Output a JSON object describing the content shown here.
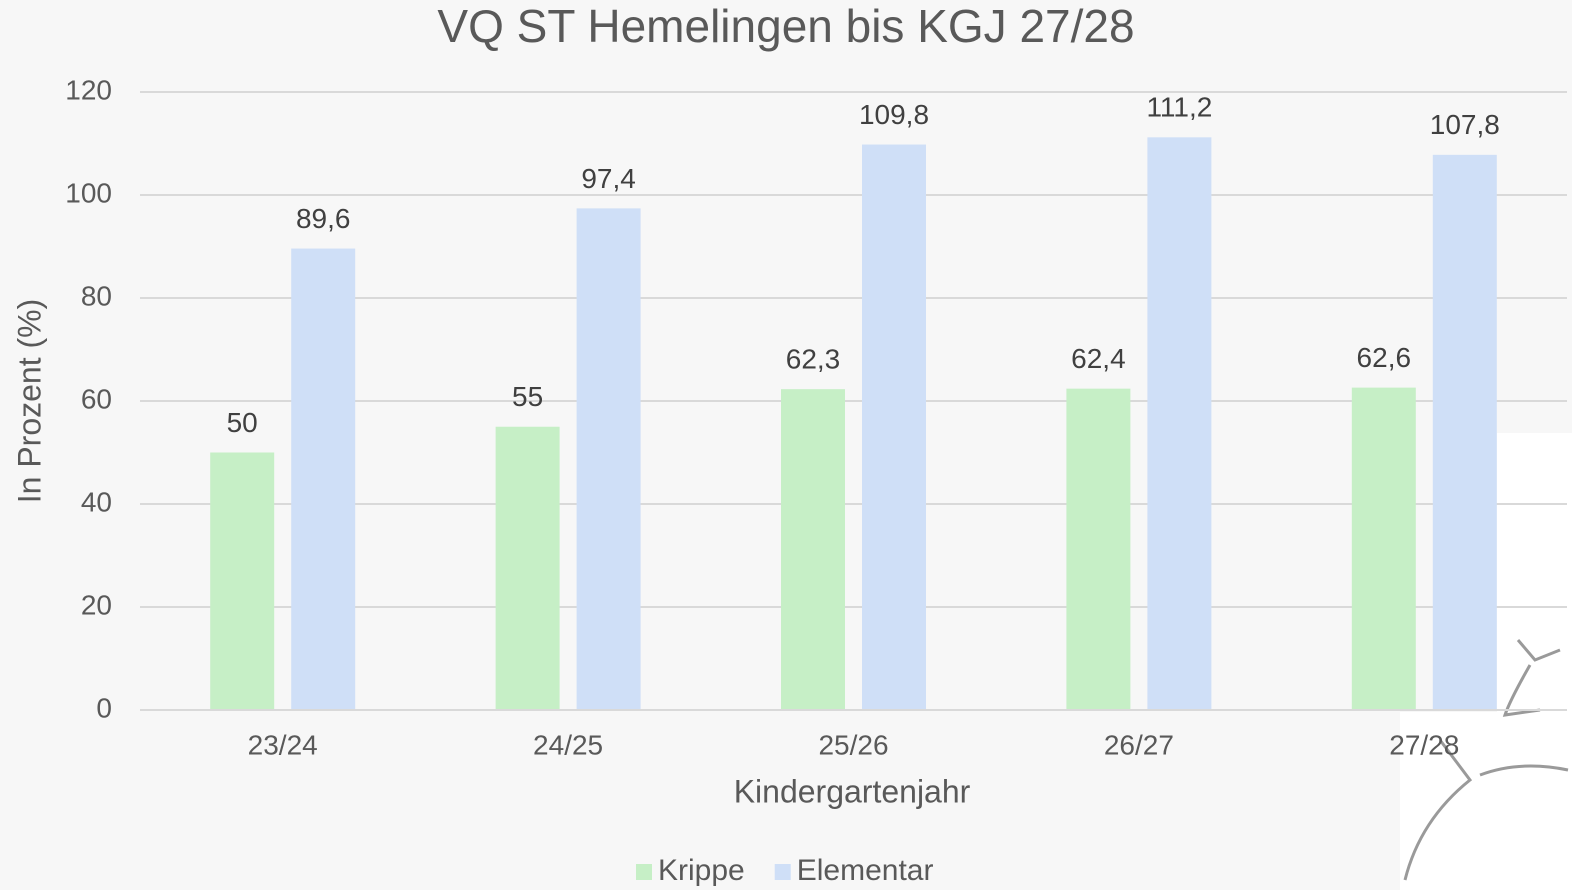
{
  "chart_data": {
    "type": "bar",
    "title": "VQ ST Hemelingen bis KGJ 27/28",
    "x_label": "Kindergartenjahr",
    "y_label": "In Prozent (%)",
    "categories": [
      "23/24",
      "24/25",
      "25/26",
      "26/27",
      "27/28"
    ],
    "series": [
      {
        "name": "Krippe",
        "color": "#c6efc6",
        "values": [
          50,
          55,
          62.3,
          62.4,
          62.6
        ],
        "value_labels": [
          "50",
          "55",
          "62,3",
          "62,4",
          "62,6"
        ]
      },
      {
        "name": "Elementar",
        "color": "#cfdff7",
        "values": [
          89.6,
          97.4,
          109.8,
          111.2,
          107.8
        ],
        "value_labels": [
          "89,6",
          "97,4",
          "109,8",
          "111,2",
          "107,8"
        ]
      }
    ],
    "ylim": [
      0,
      120
    ],
    "yticks": [
      0,
      20,
      40,
      60,
      80,
      100,
      120
    ],
    "grid": true,
    "legend": "bottom"
  }
}
